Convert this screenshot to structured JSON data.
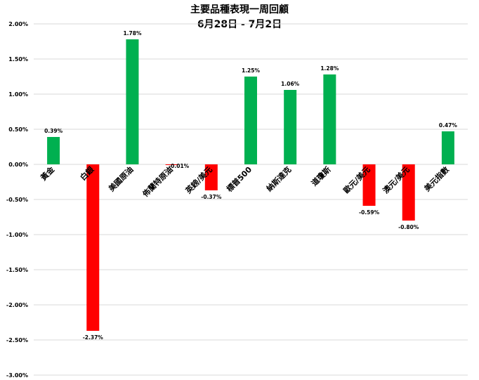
{
  "title": "主要品種表現一周回顧",
  "subtitle": "6月28日 - 7月2日",
  "colors": {
    "positive": "#00b050",
    "negative": "#ff0000",
    "grid": "#d9d9d9"
  },
  "chart_data": {
    "type": "bar",
    "title": "主要品種表現一周回顧",
    "subtitle": "6月28日 - 7月2日",
    "categories": [
      "黃金",
      "白銀",
      "美國原油",
      "佈蘭特原油",
      "英鎊/美元",
      "標普500",
      "納斯達克",
      "道瓊斯",
      "歐元/美元",
      "澳元/美元",
      "美元指數"
    ],
    "values": [
      0.39,
      -2.37,
      1.78,
      -0.01,
      -0.37,
      1.25,
      1.06,
      1.28,
      -0.59,
      -0.8,
      0.47
    ],
    "data_labels": [
      "0.39%",
      "-2.37%",
      "1.78%",
      "-0.01%",
      "-0.37%",
      "1.25%",
      "1.06%",
      "1.28%",
      "-0.59%",
      "-0.80%",
      "0.47%"
    ],
    "ylim": [
      -3.0,
      2.0
    ],
    "yticks": [
      2.0,
      1.5,
      1.0,
      0.5,
      0.0,
      -0.5,
      -1.0,
      -1.5,
      -2.0,
      -2.5,
      -3.0
    ],
    "ytick_labels": [
      "2.00%",
      "1.50%",
      "1.00%",
      "0.50%",
      "0.00%",
      "-0.50%",
      "-1.00%",
      "-1.50%",
      "-2.00%",
      "-2.50%",
      "-3.00%"
    ],
    "grid": true,
    "legend": "none"
  }
}
